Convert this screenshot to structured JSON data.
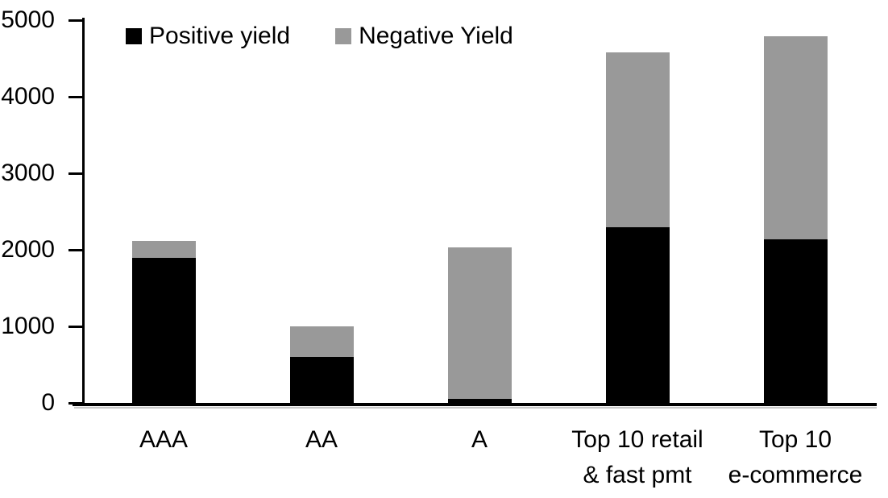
{
  "chart_data": {
    "type": "bar",
    "stacked": true,
    "title": "",
    "xlabel": "",
    "ylabel": "",
    "categories": [
      "AAA",
      "AA",
      "A",
      "Top 10 retail\n& fast pmt",
      "Top 10\ne-commerce"
    ],
    "series": [
      {
        "name": "Positive yield",
        "color": "#000000",
        "values": [
          1890,
          600,
          50,
          2290,
          2140
        ]
      },
      {
        "name": "Negative Yield",
        "color": "#999999",
        "values": [
          230,
          400,
          1980,
          2290,
          2650
        ]
      }
    ],
    "totals": [
      2120,
      1000,
      2030,
      4580,
      4790
    ],
    "ylim": [
      0,
      5000
    ],
    "y_ticks": [
      "0",
      "1000",
      "2000",
      "3000",
      "4000",
      "5000"
    ],
    "grid": false,
    "legend_position": "top",
    "axis_color": "#000000",
    "background_color": "#ffffff"
  }
}
